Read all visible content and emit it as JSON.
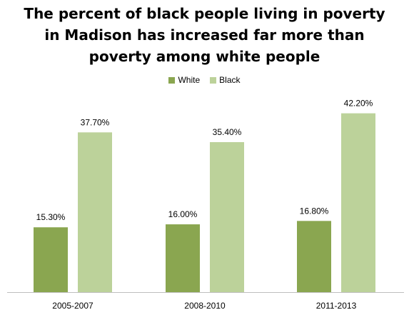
{
  "chart_data": {
    "type": "bar",
    "title_lines": [
      "The percent of black people living in poverty",
      "in Madison has increased far more than",
      "poverty among white people"
    ],
    "categories": [
      "2005-2007",
      "2008-2010",
      "2011-2013"
    ],
    "series": [
      {
        "name": "White",
        "color": "#8aa650",
        "values": [
          15.3,
          16.0,
          16.8
        ],
        "labels": [
          "15.30%",
          "16.00%",
          "16.80%"
        ]
      },
      {
        "name": "Black",
        "color": "#bcd29a",
        "values": [
          37.7,
          35.4,
          42.2
        ],
        "labels": [
          "37.70%",
          "35.40%",
          "42.20%"
        ]
      }
    ],
    "ylim": [
      0,
      45
    ],
    "grid": false,
    "y_axis_shown": false,
    "legend_position": "top-center",
    "xlabel": "",
    "ylabel": ""
  }
}
